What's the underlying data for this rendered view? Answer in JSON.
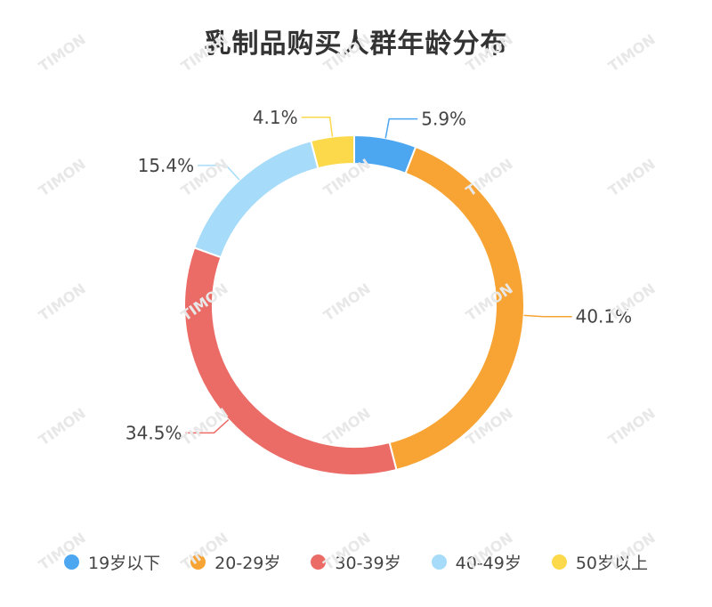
{
  "chart_data": {
    "type": "pie",
    "title": "乳制品购买人群年龄分布",
    "categories": [
      "19岁以下",
      "20-29岁",
      "30-39岁",
      "40-49岁",
      "50岁以上"
    ],
    "values": [
      5.9,
      40.1,
      34.5,
      15.4,
      4.1
    ],
    "labels": [
      "5.9%",
      "40.1%",
      "34.5%",
      "15.4%",
      "4.1%"
    ],
    "colors": [
      "#4da6f0",
      "#f7a434",
      "#eb6b66",
      "#a6dcfa",
      "#fbd94b"
    ],
    "donut": true,
    "legend_position": "bottom"
  },
  "watermark": "TIMON"
}
